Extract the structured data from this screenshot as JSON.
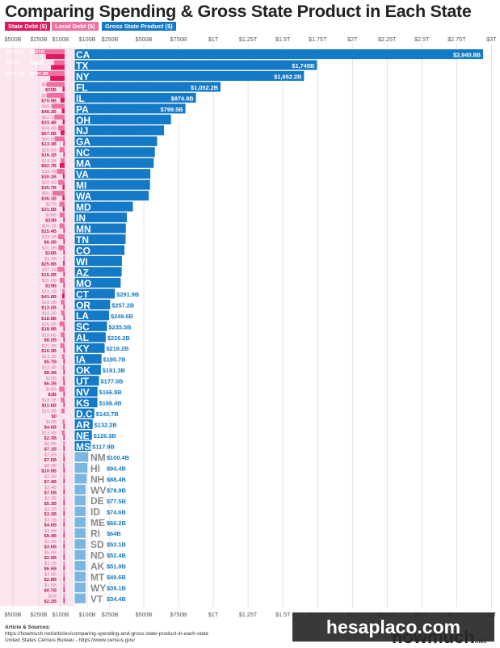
{
  "title": "Comparing Spending & Gross State Product in Each State",
  "legend": {
    "state_debt": "State Debt ($)",
    "local_debt": "Local Debt ($)",
    "gsp": "Gross State Product ($)"
  },
  "colors": {
    "state_debt": "#e0185f",
    "local_debt": "#ef6fa3",
    "gsp": "#1479c6",
    "gsp_light": "#7ab6e0",
    "label_dark": "#c0124f",
    "label_light": "#e56a9a"
  },
  "footer": {
    "header": "Article & Sources:",
    "line1": "https://howmuch.net/articles/comparing-spending-and-gross-state-product-in-each-state",
    "line2": "United States Census Bureau - https://www.census.gov/"
  },
  "brand": "howmuch",
  "brand_suffix": ".net",
  "watermark": "hesaplaco.com",
  "chart_data": {
    "type": "bar",
    "title": "Comparing Spending & Gross State Product in Each State",
    "debt_axis_ticks": [
      "$500B",
      "$250B",
      "$100B"
    ],
    "gsp_axis_ticks": [
      "$100B",
      "$250B",
      "$500B",
      "$750B",
      "$1T",
      "$1.25T",
      "$1.5T",
      "$1.75T",
      "$2T",
      "$2.25T",
      "$2.5T",
      "$2.75T",
      "$3T"
    ],
    "gsp_axis_values": [
      100,
      250,
      500,
      750,
      1000,
      1250,
      1500,
      1750,
      2000,
      2250,
      2500,
      2750,
      3000
    ],
    "debt_axis_values": [
      500,
      250,
      100
    ],
    "series": [
      {
        "name": "State Debt ($)"
      },
      {
        "name": "Local Debt ($)"
      },
      {
        "name": "Gross State Product ($)"
      }
    ],
    "states": [
      {
        "code": "CA",
        "gsp": 2940.8,
        "gsp_label": "$2,940.8B",
        "local": 155.5,
        "local_label": "$155.5B",
        "state": 321,
        "state_label": "$321B"
      },
      {
        "code": "TX",
        "gsp": 1745,
        "gsp_label": "$1,745B",
        "local": 55.2,
        "local_label": "$55.2B",
        "state": 235,
        "state_label": "$235B"
      },
      {
        "code": "NY",
        "gsp": 1652.2,
        "gsp_label": "$1,652.2B",
        "local": 141.3,
        "local_label": "$141.3B",
        "state": 247.4,
        "state_label": "$247.4B"
      },
      {
        "code": "FL",
        "gsp": 1052.2,
        "gsp_label": "$1,052.2B",
        "local": 92.6,
        "local_label": "$92.6B",
        "state": 35,
        "state_label": "$35B"
      },
      {
        "code": "IL",
        "gsp": 874.8,
        "gsp_label": "$874.8B",
        "local": 91.4,
        "local_label": "$91.4B",
        "state": 70.9,
        "state_label": "$70.9B"
      },
      {
        "code": "PA",
        "gsp": 799.5,
        "gsp_label": "$799.5B",
        "local": 65.5,
        "local_label": "$65.5B",
        "state": 48.2,
        "state_label": "$48.2B"
      },
      {
        "code": "OH",
        "gsp": 695.5,
        "gsp_label": "$695.5B",
        "local": 52.1,
        "local_label": "$52.1B",
        "state": 33.4,
        "state_label": "$33.4B"
      },
      {
        "code": "NJ",
        "gsp": 645.5,
        "gsp_label": "$645.5B",
        "local": 33.4,
        "local_label": "$33.4B",
        "state": 67.9,
        "state_label": "$67.9B"
      },
      {
        "code": "GA",
        "gsp": 595.7,
        "gsp_label": "$595.7B",
        "local": 50.5,
        "local_label": "$50.5B",
        "state": 13.3,
        "state_label": "$13.3B"
      },
      {
        "code": "NC",
        "gsp": 579.7,
        "gsp_label": "$579.7B",
        "local": 26.6,
        "local_label": "$26.6B",
        "state": 16.1,
        "state_label": "$16.1B"
      },
      {
        "code": "MA",
        "gsp": 571.3,
        "gsp_label": "$571.3B",
        "local": 19.3,
        "local_label": "$19.3B",
        "state": 82.7,
        "state_label": "$82.7B"
      },
      {
        "code": "VA",
        "gsp": 547,
        "gsp_label": "$547B",
        "local": 39.7,
        "local_label": "$39.7B",
        "state": 30.1,
        "state_label": "$30.1B"
      },
      {
        "code": "MI",
        "gsp": 544.7,
        "gsp_label": "$544.7B",
        "local": 33.6,
        "local_label": "$33.6B",
        "state": 35.7,
        "state_label": "$35.7B"
      },
      {
        "code": "WA",
        "gsp": 535.6,
        "gsp_label": "$535.6B",
        "local": 60.2,
        "local_label": "$60.2B",
        "state": 36.1,
        "state_label": "$36.1B"
      },
      {
        "code": "MD",
        "gsp": 421.7,
        "gsp_label": "$421.7B",
        "local": 27,
        "local_label": "$27B",
        "state": 31.5,
        "state_label": "$31.5B"
      },
      {
        "code": "IN",
        "gsp": 378.1,
        "gsp_label": "$378.1B",
        "local": 26,
        "local_label": "$26B",
        "state": 23,
        "state_label": "$23B"
      },
      {
        "code": "MN",
        "gsp": 370.5,
        "gsp_label": "$370.5B",
        "local": 26.7,
        "local_label": "$26.7B",
        "state": 15.4,
        "state_label": "$15.4B"
      },
      {
        "code": "TN",
        "gsp": 368.8,
        "gsp_label": "$368.8B",
        "local": 33.1,
        "local_label": "$33.1B",
        "state": 6.3,
        "state_label": "$6.3B"
      },
      {
        "code": "CO",
        "gsp": 360.9,
        "gsp_label": "$360.9B",
        "local": 31.8,
        "local_label": "$31.8B",
        "state": 16,
        "state_label": "$16B"
      },
      {
        "code": "WI",
        "gsp": 342.5,
        "gsp_label": "$342.5B",
        "local": 1.3,
        "local_label": "$1.3B",
        "state": 25.8,
        "state_label": "$25.8B"
      },
      {
        "code": "AZ",
        "gsp": 340.3,
        "gsp_label": "$340.3B",
        "local": 37.1,
        "local_label": "$37.1B",
        "state": 15.2,
        "state_label": "$15.2B"
      },
      {
        "code": "MO",
        "gsp": 333.6,
        "gsp_label": "$333.6B",
        "local": 25.6,
        "local_label": "$25.6B",
        "state": 19,
        "state_label": "$19B"
      },
      {
        "code": "CT",
        "gsp": 291.9,
        "gsp_label": "$291.9B",
        "local": 11.1,
        "local_label": "$11.1B",
        "state": 41.6,
        "state_label": "$41.6B"
      },
      {
        "code": "OR",
        "gsp": 257.2,
        "gsp_label": "$257.2B",
        "local": 18.3,
        "local_label": "$18.3B",
        "state": 13.2,
        "state_label": "$13.2B"
      },
      {
        "code": "LA",
        "gsp": 249.6,
        "gsp_label": "$249.6B",
        "local": 16.3,
        "local_label": "$16.3B",
        "state": 18.8,
        "state_label": "$18.8B"
      },
      {
        "code": "SC",
        "gsp": 235.5,
        "gsp_label": "$235.5B",
        "local": 26.5,
        "local_label": "$26.5B",
        "state": 18.9,
        "state_label": "$18.9B"
      },
      {
        "code": "AL",
        "gsp": 226.2,
        "gsp_label": "$226.2B",
        "local": 18.6,
        "local_label": "$18.6B",
        "state": 8.2,
        "state_label": "$8.2B"
      },
      {
        "code": "KY",
        "gsp": 218.2,
        "gsp_label": "$218.2B",
        "local": 21.3,
        "local_label": "$21.3B",
        "state": 16.3,
        "state_label": "$16.3B"
      },
      {
        "code": "IA",
        "gsp": 195.7,
        "gsp_label": "$195.7B",
        "local": 13.2,
        "local_label": "$13.2B",
        "state": 5.7,
        "state_label": "$5.7B"
      },
      {
        "code": "OK",
        "gsp": 191.3,
        "gsp_label": "$191.3B",
        "local": 10.4,
        "local_label": "$10.4B",
        "state": 8.3,
        "state_label": "$8.3B"
      },
      {
        "code": "UT",
        "gsp": 177.5,
        "gsp_label": "$177.5B",
        "local": 10,
        "local_label": "$10B",
        "state": 6.2,
        "state_label": "$6.2B"
      },
      {
        "code": "NV",
        "gsp": 166.8,
        "gsp_label": "$166.8B",
        "local": 28,
        "local_label": "$28B",
        "state": 3,
        "state_label": "$3B"
      },
      {
        "code": "KS",
        "gsp": 166.4,
        "gsp_label": "$166.4B",
        "local": 18.1,
        "local_label": "$18.1B",
        "state": 11.6,
        "state_label": "$11.6B"
      },
      {
        "code": "D.C",
        "gsp": 143.7,
        "gsp_label": "$143.7B",
        "local": 16.3,
        "local_label": "$16.3B",
        "state": 0,
        "state_label": "$0"
      },
      {
        "code": "AR",
        "gsp": 132.2,
        "gsp_label": "$132.2B",
        "local": 10,
        "local_label": "$10B",
        "state": 4.6,
        "state_label": "$4.6B"
      },
      {
        "code": "NE",
        "gsp": 126.3,
        "gsp_label": "$126.3B",
        "local": 13.4,
        "local_label": "$13.4B",
        "state": 2.3,
        "state_label": "$2.3B"
      },
      {
        "code": "MS",
        "gsp": 117.9,
        "gsp_label": "$117.9B",
        "local": 6.9,
        "local_label": "$6.9B",
        "state": 7.1,
        "state_label": "$7.1B"
      },
      {
        "code": "NM",
        "gsp": 100.4,
        "gsp_label": "$100.4B",
        "local": 7.6,
        "local_label": "$7.6B",
        "state": 7.5,
        "state_label": "$7.5B"
      },
      {
        "code": "HI",
        "gsp": 94.4,
        "gsp_label": "$94.4B",
        "local": 8.6,
        "local_label": "$8.6B",
        "state": 10.5,
        "state_label": "$10.5B"
      },
      {
        "code": "NH",
        "gsp": 88.4,
        "gsp_label": "$88.4B",
        "local": 2.6,
        "local_label": "$2.6B",
        "state": 7.4,
        "state_label": "$7.4B"
      },
      {
        "code": "WV",
        "gsp": 78.9,
        "gsp_label": "$78.9B",
        "local": 3.4,
        "local_label": "$3.4B",
        "state": 7.5,
        "state_label": "$7.5B"
      },
      {
        "code": "DE",
        "gsp": 77.5,
        "gsp_label": "$77.5B",
        "local": 2.3,
        "local_label": "$2.3B",
        "state": 5.3,
        "state_label": "$5.3B"
      },
      {
        "code": "ID",
        "gsp": 74.6,
        "gsp_label": "$74.6B",
        "local": 2.1,
        "local_label": "$2.1B",
        "state": 3.3,
        "state_label": "$3.3B"
      },
      {
        "code": "ME",
        "gsp": 66.2,
        "gsp_label": "$66.2B",
        "local": 3.2,
        "local_label": "$3.2B",
        "state": 4.6,
        "state_label": "$4.6B"
      },
      {
        "code": "RI",
        "gsp": 64,
        "gsp_label": "$64B",
        "local": 3.8,
        "local_label": "$3.8B",
        "state": 9.4,
        "state_label": "$9.4B"
      },
      {
        "code": "SD",
        "gsp": 53.1,
        "gsp_label": "$53.1B",
        "local": 2.2,
        "local_label": "$2.2B",
        "state": 3.6,
        "state_label": "$3.6B"
      },
      {
        "code": "ND",
        "gsp": 52.4,
        "gsp_label": "$52.4B",
        "local": 5.4,
        "local_label": "$5.4B",
        "state": 2.9,
        "state_label": "$2.9B"
      },
      {
        "code": "AK",
        "gsp": 51.9,
        "gsp_label": "$51.9B",
        "local": 3.1,
        "local_label": "$3.1B",
        "state": 6.6,
        "state_label": "$6.6B"
      },
      {
        "code": "MT",
        "gsp": 49.6,
        "gsp_label": "$49.6B",
        "local": 3.8,
        "local_label": "$3.8B",
        "state": 2.8,
        "state_label": "$2.8B"
      },
      {
        "code": "WY",
        "gsp": 39.1,
        "gsp_label": "$39.1B",
        "local": 1.5,
        "local_label": "$1.5B",
        "state": 0.7,
        "state_label": "$0.7B"
      },
      {
        "code": "VT",
        "gsp": 34.4,
        "gsp_label": "$34.4B",
        "local": 1,
        "local_label": "$1B",
        "state": 2.2,
        "state_label": "$2.2B"
      }
    ]
  }
}
